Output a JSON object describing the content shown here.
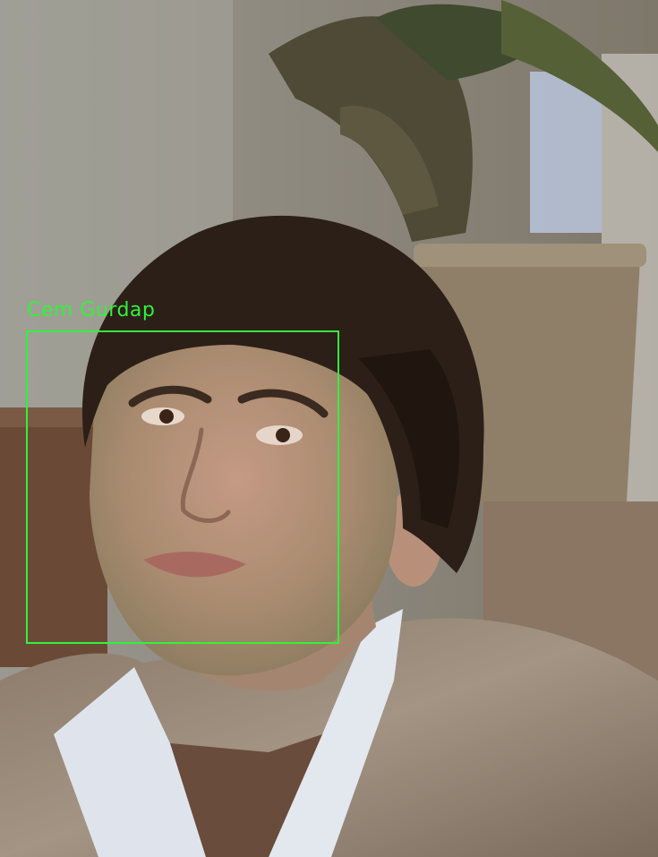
{
  "detection": {
    "label": "Cem Gurdap",
    "box_color": "#31f23a"
  },
  "scene": {
    "subject": "man-portrait",
    "background": "room-with-potted-plant-and-window"
  }
}
